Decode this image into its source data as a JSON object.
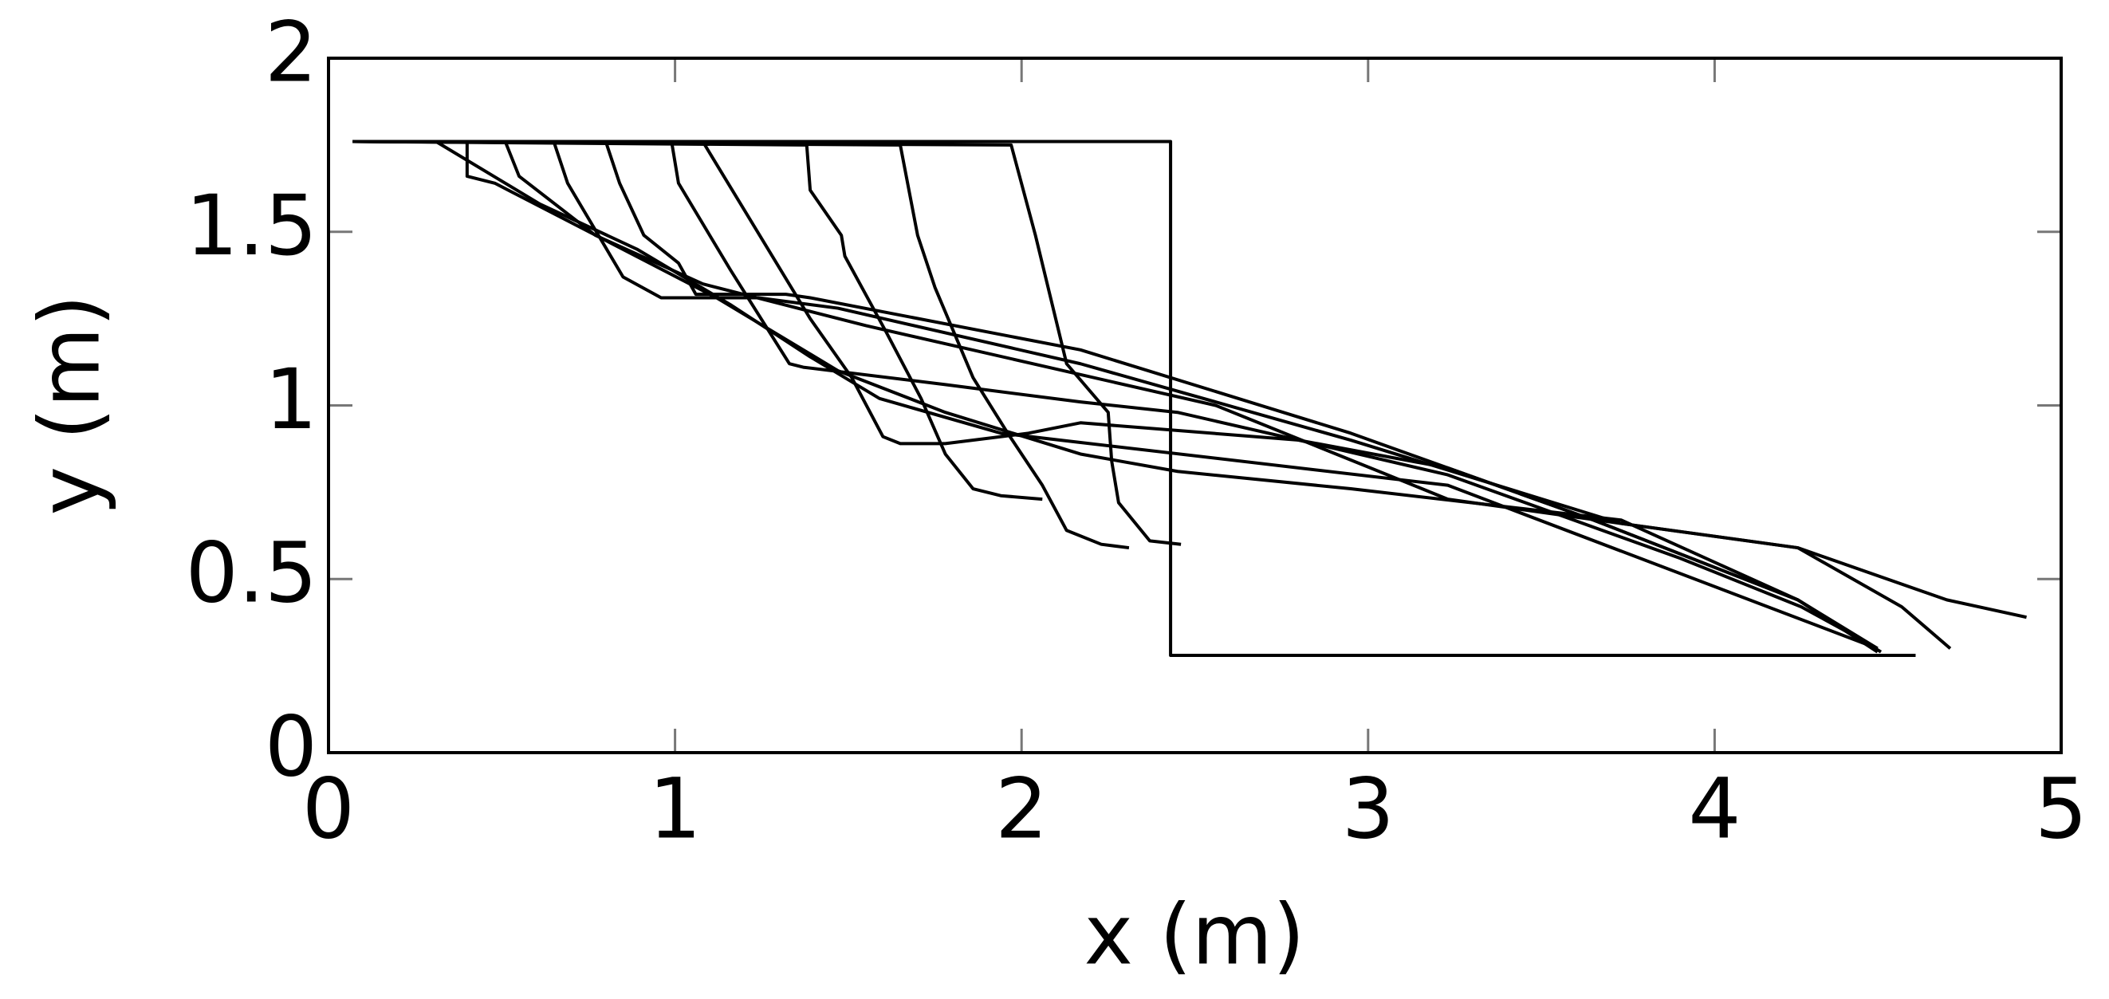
{
  "chart_data": {
    "type": "line",
    "xlabel": "x (m)",
    "ylabel": "y (m)",
    "color": "#000000",
    "xlim": [
      0,
      5
    ],
    "ylim": [
      0,
      2
    ],
    "xticks": [
      0,
      1,
      2,
      3,
      4,
      5
    ],
    "yticks": [
      0,
      0.5,
      1,
      1.5,
      2
    ],
    "series": [
      {
        "x": [
          0.07,
          2.43,
          2.43,
          4.58
        ],
        "values": [
          1.76,
          1.76,
          0.28,
          0.28
        ]
      },
      {
        "x": [
          0.07,
          1.97,
          2.04,
          2.13,
          2.25,
          2.26,
          2.28,
          2.37,
          2.46
        ],
        "values": [
          1.76,
          1.75,
          1.49,
          1.12,
          0.98,
          0.84,
          0.72,
          0.61,
          0.6
        ]
      },
      {
        "x": [
          0.07,
          1.65,
          1.7,
          1.75,
          1.86,
          1.96,
          2.06,
          2.13,
          2.23,
          2.31
        ],
        "values": [
          1.76,
          1.75,
          1.49,
          1.34,
          1.08,
          0.92,
          0.77,
          0.64,
          0.6,
          0.59
        ]
      },
      {
        "x": [
          0.07,
          1.38,
          1.39,
          1.48,
          1.49,
          1.61,
          1.71,
          1.78,
          1.86,
          1.94,
          2.06
        ],
        "values": [
          1.76,
          1.75,
          1.62,
          1.49,
          1.43,
          1.21,
          1.02,
          0.86,
          0.76,
          0.74,
          0.73
        ]
      },
      {
        "x": [
          0.07,
          1.08,
          1.39,
          1.51,
          1.6,
          1.65,
          1.78,
          2.02,
          2.17,
          2.8,
          3.23,
          3.9,
          4.25,
          4.47
        ],
        "values": [
          1.76,
          1.76,
          1.25,
          1.08,
          0.91,
          0.89,
          0.89,
          0.92,
          0.95,
          0.9,
          0.8,
          0.56,
          0.42,
          0.3
        ]
      },
      {
        "x": [
          0.07,
          0.99,
          1.01,
          1.16,
          1.33,
          1.37,
          1.78,
          2.17,
          2.45,
          2.8,
          3.23,
          3.65,
          4.24,
          4.48
        ],
        "values": [
          1.76,
          1.76,
          1.64,
          1.39,
          1.12,
          1.11,
          1.06,
          1.01,
          0.98,
          0.9,
          0.82,
          0.67,
          0.44,
          0.29
        ]
      },
      {
        "x": [
          0.07,
          0.8,
          0.84,
          0.91,
          1.01,
          1.06,
          1.32,
          1.39,
          2.17,
          2.95,
          3.65,
          4.24,
          4.47
        ],
        "values": [
          1.76,
          1.76,
          1.64,
          1.49,
          1.41,
          1.32,
          1.32,
          1.31,
          1.16,
          0.92,
          0.67,
          0.44,
          0.3
        ]
      },
      {
        "x": [
          0.07,
          0.65,
          0.69,
          0.85,
          0.96,
          1.24,
          1.47,
          2.17,
          2.95,
          3.73,
          4.24,
          4.54,
          4.68
        ],
        "values": [
          1.76,
          1.76,
          1.64,
          1.37,
          1.31,
          1.31,
          1.28,
          1.12,
          0.9,
          0.66,
          0.59,
          0.42,
          0.3
        ]
      },
      {
        "x": [
          0.07,
          0.51,
          0.55,
          0.77,
          1.08,
          1.55,
          2.56,
          3.23,
          3.73,
          4.24,
          4.67,
          4.9
        ],
        "values": [
          1.76,
          1.76,
          1.66,
          1.49,
          1.35,
          1.23,
          1.0,
          0.73,
          0.66,
          0.59,
          0.44,
          0.39
        ]
      },
      {
        "x": [
          0.07,
          0.4,
          0.4,
          0.48,
          0.81,
          1.12,
          1.47,
          1.78,
          2.17,
          2.45,
          2.95,
          3.73,
          4.24,
          4.47
        ],
        "values": [
          1.76,
          1.76,
          1.66,
          1.64,
          1.47,
          1.31,
          1.1,
          0.98,
          0.86,
          0.81,
          0.76,
          0.67,
          0.44,
          0.29
        ]
      },
      {
        "x": [
          0.07,
          0.31,
          0.61,
          0.89,
          1.16,
          1.39,
          1.59,
          1.94,
          3.23,
          4.47
        ],
        "values": [
          1.76,
          1.76,
          1.58,
          1.45,
          1.29,
          1.14,
          1.02,
          0.92,
          0.77,
          0.3
        ]
      }
    ]
  }
}
